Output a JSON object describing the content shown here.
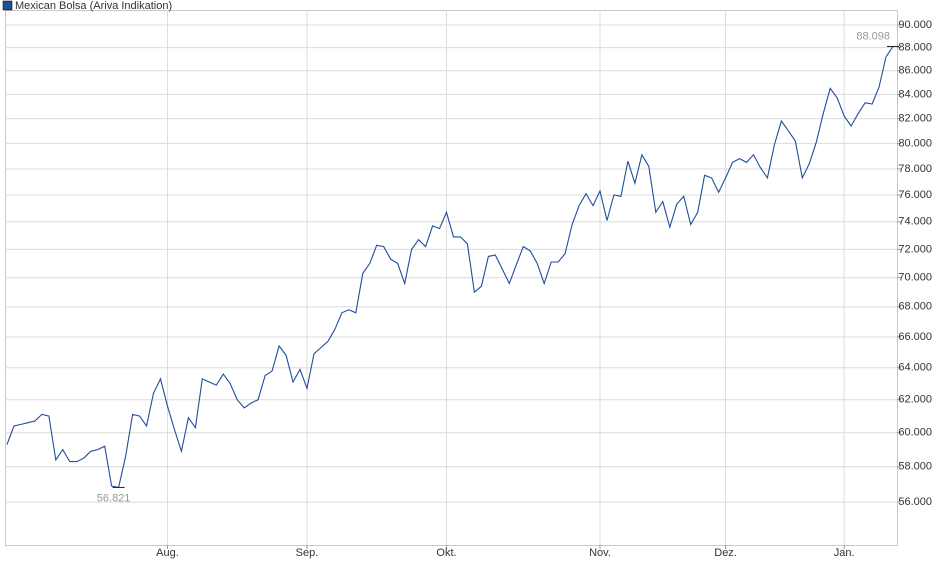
{
  "chart_data": {
    "type": "line",
    "categories": [
      null,
      null,
      null,
      null,
      null,
      null,
      null,
      null,
      null,
      null,
      null,
      null,
      null,
      null,
      null,
      null,
      null,
      null,
      null,
      null,
      null,
      null,
      null,
      "Aug.",
      null,
      null,
      null,
      null,
      null,
      null,
      null,
      null,
      null,
      null,
      null,
      null,
      null,
      null,
      null,
      null,
      null,
      null,
      null,
      "Sep.",
      null,
      null,
      null,
      null,
      null,
      null,
      null,
      null,
      null,
      null,
      null,
      null,
      null,
      null,
      null,
      null,
      null,
      null,
      null,
      "Okt.",
      null,
      null,
      null,
      null,
      null,
      null,
      null,
      null,
      null,
      null,
      null,
      null,
      null,
      null,
      null,
      null,
      null,
      null,
      null,
      null,
      null,
      "Nov.",
      null,
      null,
      null,
      null,
      null,
      null,
      null,
      null,
      null,
      null,
      null,
      null,
      null,
      null,
      null,
      null,
      null,
      "Dez.",
      null,
      null,
      null,
      null,
      null,
      null,
      null,
      null,
      null,
      null,
      null,
      null,
      null,
      null,
      null,
      null,
      "Jan.",
      null,
      null,
      null,
      null,
      null,
      null,
      null
    ],
    "series": [
      {
        "name": "Mexican Bolsa (Ariva Indikation)",
        "color": "#1f4e9c",
        "values": [
          59300,
          60400,
          60500,
          60600,
          60700,
          61100,
          61000,
          58400,
          59000,
          58300,
          58300,
          58500,
          58900,
          59000,
          59200,
          56900,
          56821,
          58600,
          61100,
          61000,
          60400,
          62400,
          63300,
          61600,
          60200,
          58900,
          60900,
          60300,
          63300,
          63100,
          62900,
          63600,
          63000,
          62000,
          61500,
          61800,
          62000,
          63500,
          63800,
          65400,
          64800,
          63100,
          63900,
          62700,
          64900,
          65300,
          65700,
          66500,
          67600,
          67800,
          67600,
          70300,
          71000,
          72300,
          72200,
          71300,
          71000,
          69600,
          72000,
          72700,
          72200,
          73700,
          73500,
          74700,
          72900,
          72900,
          72400,
          69000,
          69400,
          71500,
          71600,
          70600,
          69600,
          70900,
          72200,
          71900,
          71000,
          69600,
          71100,
          71100,
          71700,
          73800,
          75200,
          76100,
          75200,
          76300,
          74100,
          76000,
          75900,
          78600,
          76900,
          79100,
          78200,
          74700,
          75500,
          73600,
          75300,
          75900,
          73800,
          74700,
          77500,
          77300,
          76200,
          77300,
          78500,
          78800,
          78500,
          79100,
          78100,
          77300,
          79900,
          81800,
          81000,
          80200,
          77300,
          78400,
          80100,
          82400,
          84500,
          83700,
          82200,
          81400,
          82400,
          83300,
          83200,
          84600,
          87200,
          88098
        ],
        "value_labels": [
          null,
          null,
          null,
          null,
          null,
          null,
          null,
          null,
          null,
          null,
          null,
          null,
          null,
          null,
          null,
          null,
          "56.821",
          null,
          null,
          null,
          null,
          null,
          null,
          null,
          null,
          null,
          null,
          null,
          null,
          null,
          null,
          null,
          null,
          null,
          null,
          null,
          null,
          null,
          null,
          null,
          null,
          null,
          null,
          null,
          null,
          null,
          null,
          null,
          null,
          null,
          null,
          null,
          null,
          null,
          null,
          null,
          null,
          null,
          null,
          null,
          null,
          null,
          null,
          null,
          null,
          null,
          null,
          null,
          null,
          null,
          null,
          null,
          null,
          null,
          null,
          null,
          null,
          null,
          null,
          null,
          null,
          null,
          null,
          null,
          null,
          null,
          null,
          null,
          null,
          null,
          null,
          null,
          null,
          null,
          null,
          null,
          null,
          null,
          null,
          null,
          null,
          null,
          null,
          null,
          null,
          null,
          null,
          null,
          null,
          null,
          null,
          null,
          null,
          null,
          null,
          null,
          null,
          null,
          null,
          null,
          null,
          null,
          null,
          null,
          null,
          null,
          null,
          "88.098"
        ]
      }
    ],
    "yscale": "log",
    "ylim": [
      53660,
      91350
    ],
    "yticks": [
      {
        "value": 56000,
        "label": "56.000"
      },
      {
        "value": 58000,
        "label": "58.000"
      },
      {
        "value": 60000,
        "label": "60.000"
      },
      {
        "value": 62000,
        "label": "62.000"
      },
      {
        "value": 64000,
        "label": "64.000"
      },
      {
        "value": 66000,
        "label": "66.000"
      },
      {
        "value": 68000,
        "label": "68.000"
      },
      {
        "value": 70000,
        "label": "70.000"
      },
      {
        "value": 72000,
        "label": "72.000"
      },
      {
        "value": 74000,
        "label": "74.000"
      },
      {
        "value": 76000,
        "label": "76.000"
      },
      {
        "value": 78000,
        "label": "78.000"
      },
      {
        "value": 80000,
        "label": "80.000"
      },
      {
        "value": 82000,
        "label": "82.000"
      },
      {
        "value": 84000,
        "label": "84.000"
      },
      {
        "value": 86000,
        "label": "86.000"
      },
      {
        "value": 88000,
        "label": "88.000"
      },
      {
        "value": 90000,
        "label": "90.000"
      }
    ],
    "grid": true
  }
}
